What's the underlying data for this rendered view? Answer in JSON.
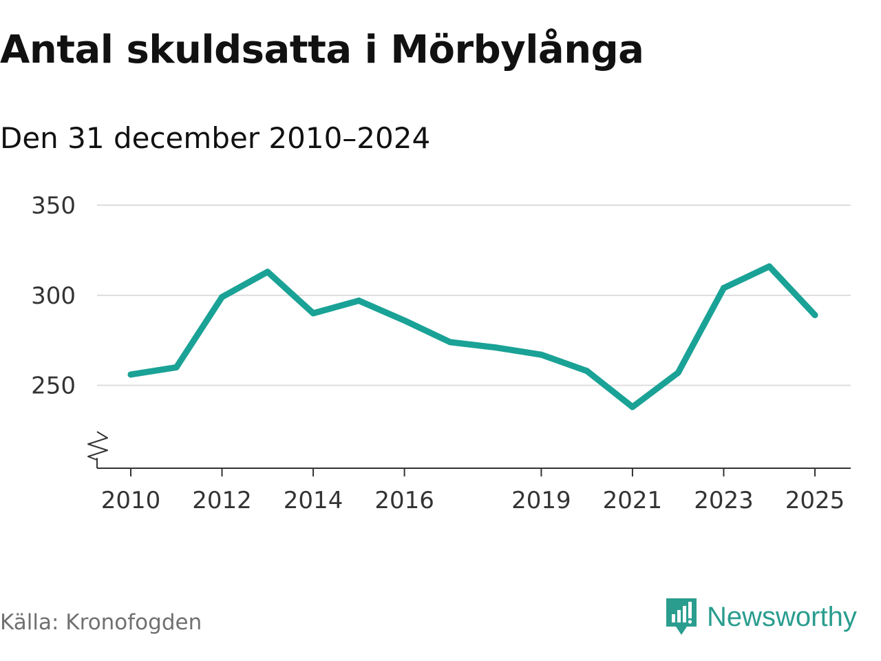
{
  "title": "Antal skuldsatta i Mörbylånga",
  "subtitle": "Den 31 december 2010–2024",
  "source": "Källa: Kronofogden",
  "brand": {
    "name": "Newsworthy",
    "icon": "newsworthy-logo-icon",
    "color": "#2a9d8f"
  },
  "colors": {
    "line": "#1aa296",
    "grid": "#dddddd",
    "axis": "#333333"
  },
  "chart_data": {
    "type": "line",
    "title": "Antal skuldsatta i Mörbylånga",
    "subtitle": "Den 31 december 2010–2024",
    "xlabel": "",
    "ylabel": "",
    "x": [
      2010,
      2011,
      2012,
      2013,
      2014,
      2015,
      2016,
      2017,
      2018,
      2019,
      2020,
      2021,
      2022,
      2023,
      2024,
      2025
    ],
    "series": [
      {
        "name": "Antal skuldsatta",
        "values": [
          256,
          260,
          299,
          313,
          290,
          297,
          286,
          274,
          271,
          267,
          258,
          238,
          257,
          304,
          316,
          289
        ]
      }
    ],
    "xlim": [
      2010,
      2025
    ],
    "ylim": [
      204,
      350
    ],
    "y_ticks": [
      250,
      300,
      350
    ],
    "x_ticks": [
      2010,
      2012,
      2014,
      2016,
      2019,
      2021,
      2023,
      2025
    ],
    "grid": true,
    "axis_break": true
  }
}
